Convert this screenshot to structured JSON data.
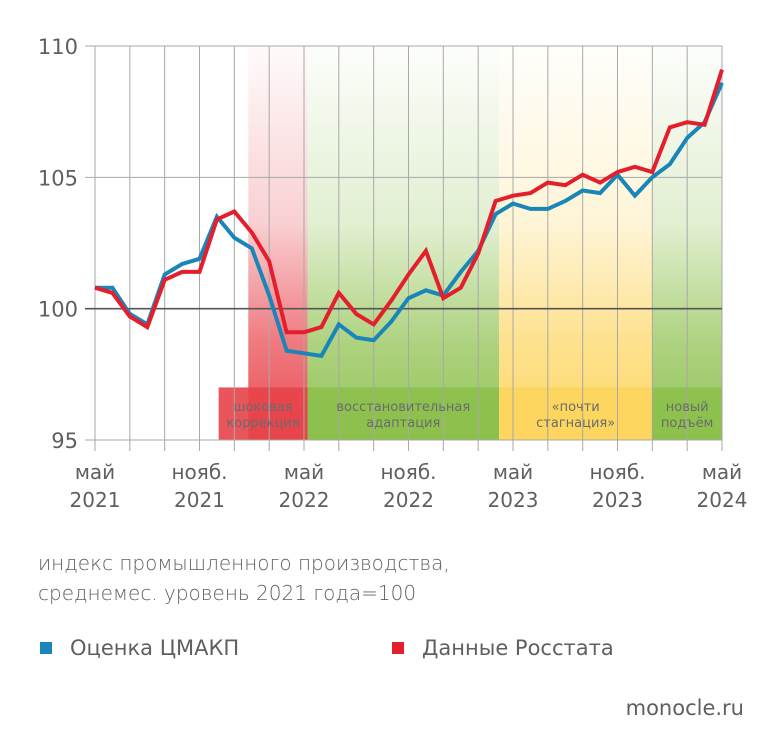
{
  "chart_data": {
    "type": "line",
    "title": "",
    "ylabel": "индекс промышленного производства, среднемес. уровень 2021 года=100",
    "ylim": [
      95,
      110
    ],
    "yticks": [
      95,
      100,
      105,
      110
    ],
    "reference_line": 100,
    "grid": {
      "vertical": true,
      "vertical_step_months": 2
    },
    "x": [
      "2021-05",
      "2021-06",
      "2021-07",
      "2021-08",
      "2021-09",
      "2021-10",
      "2021-11",
      "2021-12",
      "2022-01",
      "2022-02",
      "2022-03",
      "2022-04",
      "2022-05",
      "2022-06",
      "2022-07",
      "2022-08",
      "2022-09",
      "2022-10",
      "2022-11",
      "2022-12",
      "2023-01",
      "2023-02",
      "2023-03",
      "2023-04",
      "2023-05",
      "2023-06",
      "2023-07",
      "2023-08",
      "2023-09",
      "2023-10",
      "2023-11",
      "2023-12",
      "2024-01",
      "2024-02",
      "2024-03",
      "2024-04",
      "2024-05"
    ],
    "xtick_labels": [
      {
        "index": 0,
        "line1": "май",
        "line2": "2021"
      },
      {
        "index": 6,
        "line1": "нояб.",
        "line2": "2021"
      },
      {
        "index": 12,
        "line1": "май",
        "line2": "2022"
      },
      {
        "index": 18,
        "line1": "нояб.",
        "line2": "2022"
      },
      {
        "index": 24,
        "line1": "май",
        "line2": "2023"
      },
      {
        "index": 30,
        "line1": "нояб.",
        "line2": "2023"
      },
      {
        "index": 36,
        "line1": "май",
        "line2": "2024"
      }
    ],
    "series": [
      {
        "name": "Оценка ЦМАКП",
        "color": "#1a86b8",
        "values": [
          100.8,
          100.8,
          99.8,
          99.4,
          101.3,
          101.7,
          101.9,
          103.5,
          102.7,
          102.3,
          100.5,
          98.4,
          98.3,
          98.2,
          99.4,
          98.9,
          98.8,
          99.5,
          100.4,
          100.7,
          100.5,
          101.4,
          102.2,
          103.6,
          104.0,
          103.8,
          103.8,
          104.1,
          104.5,
          104.4,
          105.1,
          104.3,
          105.0,
          105.5,
          106.5,
          107.1,
          108.6
        ]
      },
      {
        "name": "Данные Росстата",
        "color": "#e31e2d",
        "values": [
          100.8,
          100.6,
          99.7,
          99.3,
          101.1,
          101.4,
          101.4,
          103.4,
          103.7,
          102.9,
          101.8,
          99.1,
          99.1,
          99.3,
          100.6,
          99.8,
          99.4,
          100.3,
          101.3,
          102.2,
          100.4,
          100.8,
          102.1,
          104.1,
          104.3,
          104.4,
          104.8,
          104.7,
          105.1,
          104.8,
          105.2,
          105.4,
          105.2,
          106.9,
          107.1,
          107.0,
          109.1
        ]
      }
    ],
    "annotations": [
      {
        "label_line1": "шоковая",
        "label_line2": "коррекция",
        "color": "#e8424a",
        "start_index": 7.1,
        "column_start_index": 8.8,
        "end_index": 12.2
      },
      {
        "label_line1": "восстановительная",
        "label_line2": "адаптация",
        "color": "#8cc04b",
        "start_index": 12.2,
        "end_index": 23.2
      },
      {
        "label_line1": "«почти",
        "label_line2": "стагнация»",
        "color": "#fdd55e",
        "start_index": 23.2,
        "end_index": 32.0
      },
      {
        "label_line1": "новый",
        "label_line2": "подъём",
        "color": "#8cc04b",
        "start_index": 32.0,
        "end_index": 36.0
      }
    ],
    "legend_position": "bottom"
  },
  "caption": {
    "line1": "индекс промышленного производства,",
    "line2": "среднемес. уровень 2021 года=100"
  },
  "legend": [
    {
      "label": "Оценка ЦМАКП",
      "color": "#1a86b8"
    },
    {
      "label": "Данные Росстата",
      "color": "#e31e2d"
    }
  ],
  "source": "monocle.ru"
}
